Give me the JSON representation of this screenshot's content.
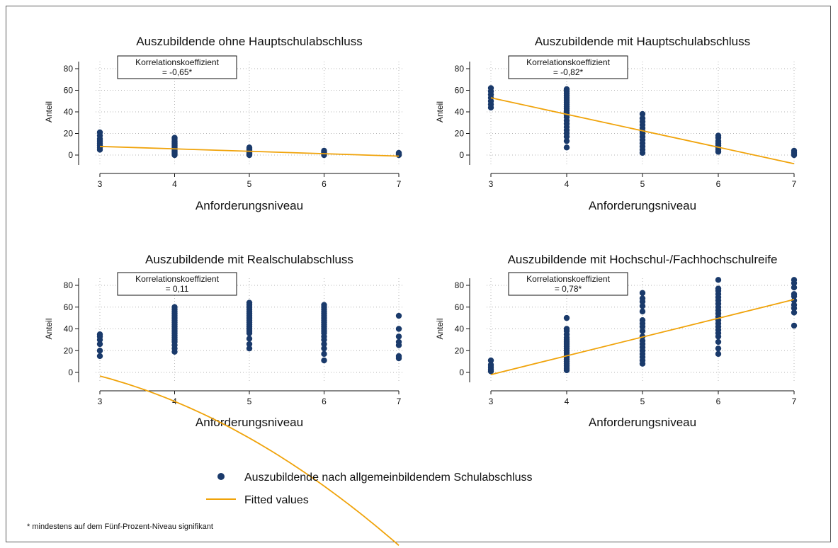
{
  "colors": {
    "marker": "#1a3a6b",
    "fit": "#f0a30a",
    "grid": "#b5b5b5",
    "axis": "#111111"
  },
  "chart_data": [
    {
      "type": "scatter",
      "title": "Auszubildende ohne Hauptschulabschluss",
      "xlabel": "Anforderungsniveau",
      "ylabel": "Anteil",
      "xlim": [
        3,
        7
      ],
      "ylim": [
        0,
        80
      ],
      "xticks": [
        "3",
        "4",
        "5",
        "6",
        "7"
      ],
      "yticks": [
        "0",
        "20",
        "40",
        "60",
        "80"
      ],
      "corr_label": "Korrelationskoeffizient",
      "corr_value": "= -0,65*",
      "points": [
        {
          "x": 3,
          "y": [
            5,
            7,
            9,
            11,
            13,
            15,
            18,
            21
          ]
        },
        {
          "x": 4,
          "y": [
            0,
            1,
            2,
            3,
            4,
            5,
            6,
            7,
            8,
            9,
            10,
            11,
            12,
            13,
            15,
            16
          ]
        },
        {
          "x": 5,
          "y": [
            0,
            1,
            2,
            3,
            4,
            5,
            6,
            7
          ]
        },
        {
          "x": 6,
          "y": [
            0,
            1,
            2,
            3,
            4
          ]
        },
        {
          "x": 7,
          "y": [
            0,
            1,
            2
          ]
        }
      ],
      "fit": {
        "kind": "linear",
        "x": [
          3,
          7
        ],
        "y": [
          8,
          -1
        ]
      }
    },
    {
      "type": "scatter",
      "title": "Auszubildende mit Hauptschulabschluss",
      "xlabel": "Anforderungsniveau",
      "ylabel": "Anteil",
      "xlim": [
        3,
        7
      ],
      "ylim": [
        0,
        80
      ],
      "xticks": [
        "3",
        "4",
        "5",
        "6",
        "7"
      ],
      "yticks": [
        "0",
        "20",
        "40",
        "60",
        "80"
      ],
      "corr_label": "Korrelationskoeffizient",
      "corr_value": "= -0,82*",
      "points": [
        {
          "x": 3,
          "y": [
            44,
            47,
            50,
            53,
            56,
            59,
            62
          ]
        },
        {
          "x": 4,
          "y": [
            7,
            13,
            17,
            20,
            23,
            26,
            29,
            32,
            35,
            37,
            39,
            41,
            43,
            45,
            47,
            49,
            51,
            53,
            55,
            57,
            59,
            61
          ]
        },
        {
          "x": 5,
          "y": [
            2,
            5,
            8,
            11,
            14,
            17,
            20,
            22,
            25,
            28,
            31,
            34,
            38
          ]
        },
        {
          "x": 6,
          "y": [
            3,
            5,
            7,
            9,
            11,
            13,
            16,
            18
          ]
        },
        {
          "x": 7,
          "y": [
            0,
            2,
            4
          ]
        }
      ],
      "fit": {
        "kind": "linear",
        "x": [
          3,
          7
        ],
        "y": [
          53,
          -8
        ]
      }
    },
    {
      "type": "scatter",
      "title": "Auszubildende mit Realschulabschluss",
      "xlabel": "Anforderungsniveau",
      "ylabel": "Anteil",
      "xlim": [
        3,
        7
      ],
      "ylim": [
        0,
        80
      ],
      "xticks": [
        "3",
        "4",
        "5",
        "6",
        "7"
      ],
      "yticks": [
        "0",
        "20",
        "40",
        "60",
        "80"
      ],
      "corr_label": "Korrelationskoeffizient",
      "corr_value": "=  0,11",
      "points": [
        {
          "x": 3,
          "y": [
            15,
            20,
            26,
            30,
            33,
            35
          ]
        },
        {
          "x": 4,
          "y": [
            19,
            22,
            25,
            28,
            30,
            32,
            34,
            36,
            38,
            40,
            42,
            44,
            46,
            48,
            50,
            52,
            54,
            56,
            58,
            60
          ]
        },
        {
          "x": 5,
          "y": [
            22,
            26,
            31,
            36,
            38,
            40,
            42,
            44,
            46,
            48,
            50,
            52,
            54,
            56,
            58,
            60,
            62,
            64
          ]
        },
        {
          "x": 6,
          "y": [
            11,
            17,
            22,
            26,
            30,
            33,
            36,
            38,
            40,
            42,
            44,
            46,
            48,
            50,
            52,
            54,
            56,
            58,
            60,
            62
          ]
        },
        {
          "x": 7,
          "y": [
            13,
            15,
            25,
            28,
            33,
            40,
            52
          ]
        }
      ],
      "fit": {
        "kind": "quadratic",
        "coef": [
          -5.2,
          13.1,
          4.2
        ]
      }
    },
    {
      "type": "scatter",
      "title": "Auszubildende mit Hochschul-/Fachhochschulreife",
      "xlabel": "Anforderungsniveau",
      "ylabel": "Anteil",
      "xlim": [
        3,
        7
      ],
      "ylim": [
        0,
        80
      ],
      "xticks": [
        "3",
        "4",
        "5",
        "6",
        "7"
      ],
      "yticks": [
        "0",
        "20",
        "40",
        "60",
        "80"
      ],
      "corr_label": "Korrelationskoeffizient",
      "corr_value": "= 0,78*",
      "points": [
        {
          "x": 3,
          "y": [
            1,
            3,
            5,
            7,
            11
          ]
        },
        {
          "x": 4,
          "y": [
            2,
            4,
            6,
            8,
            10,
            12,
            14,
            16,
            18,
            20,
            22,
            24,
            26,
            28,
            30,
            32,
            35,
            38,
            40,
            50
          ]
        },
        {
          "x": 5,
          "y": [
            8,
            11,
            14,
            17,
            20,
            23,
            26,
            29,
            33,
            38,
            42,
            45,
            48,
            56,
            61,
            65,
            68,
            73
          ]
        },
        {
          "x": 6,
          "y": [
            17,
            22,
            28,
            33,
            36,
            39,
            42,
            45,
            48,
            51,
            54,
            57,
            60,
            63,
            66,
            69,
            72,
            75,
            77,
            85
          ]
        },
        {
          "x": 7,
          "y": [
            43,
            55,
            59,
            62,
            66,
            70,
            72,
            78,
            82,
            85
          ]
        }
      ],
      "fit": {
        "kind": "linear",
        "x": [
          3,
          7
        ],
        "y": [
          -2,
          67
        ]
      }
    }
  ],
  "legend": {
    "items": [
      {
        "label": "Auszubildende nach allgemeinbildendem Schulabschluss",
        "kind": "marker"
      },
      {
        "label": "Fitted values",
        "kind": "line"
      }
    ]
  },
  "footnote": "* mindestens auf dem Fünf-Prozent-Niveau signifikant"
}
